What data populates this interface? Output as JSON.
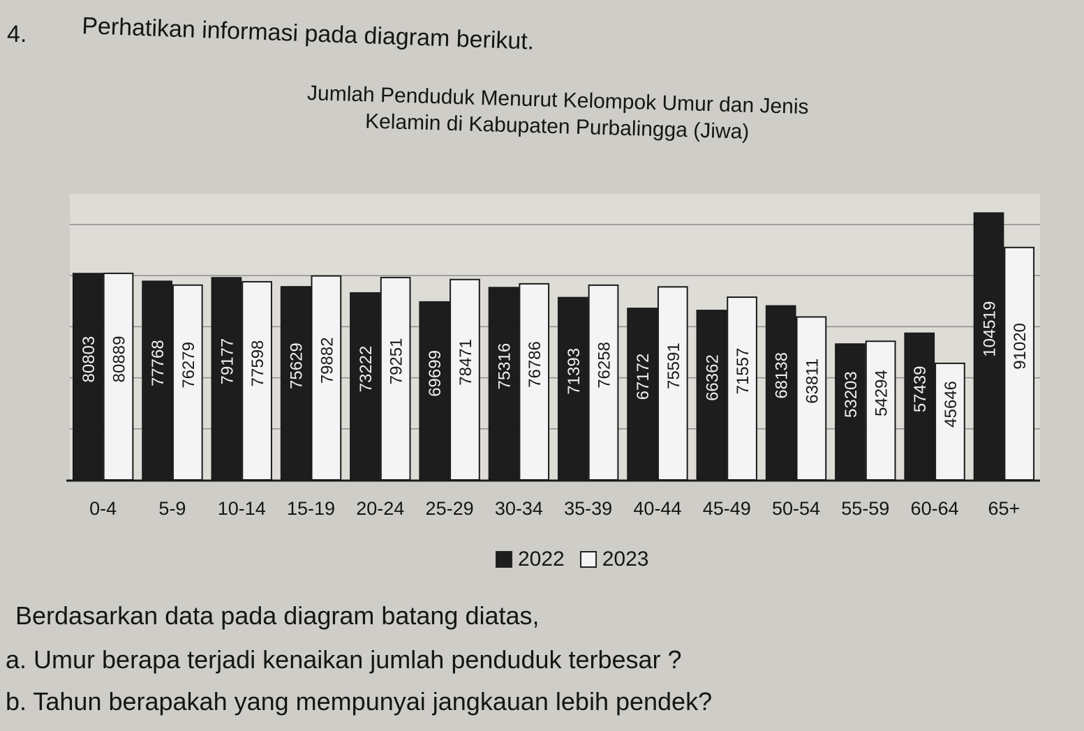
{
  "question_number": "4.",
  "intro": "Perhatikan informasi pada diagram berikut.",
  "chart_data": {
    "type": "bar",
    "title_lines": [
      "Jumlah Penduduk Menurut Kelompok Umur dan Jenis",
      "Kelamin di Kabupaten Purbalingga (Jiwa)"
    ],
    "categories": [
      "0-4",
      "5-9",
      "10-14",
      "15-19",
      "20-24",
      "25-29",
      "30-34",
      "35-39",
      "40-44",
      "45-49",
      "50-54",
      "55-59",
      "60-64",
      "65+"
    ],
    "series": [
      {
        "name": "2022",
        "values": [
          80803,
          77768,
          79177,
          75629,
          73222,
          69699,
          75316,
          71393,
          67172,
          66362,
          68138,
          53203,
          57439,
          104519
        ],
        "labels": [
          "80803",
          "77768",
          "79177",
          "75629",
          "73222",
          "69699",
          "75316",
          "71393",
          "67172",
          "66362",
          "68138",
          "53203",
          "57439",
          "104519"
        ],
        "color": "#1d1d1d"
      },
      {
        "name": "2023",
        "values": [
          80889,
          76279,
          77598,
          79882,
          79251,
          78471,
          76786,
          76258,
          75591,
          71557,
          63811,
          54294,
          45646,
          91020
        ],
        "labels": [
          "80889",
          "76279",
          "77598",
          "79882",
          "79251",
          "78471",
          "76786",
          "76258",
          "75591",
          "71557",
          "63811",
          "54294",
          "45646",
          "91020"
        ],
        "color": "#f4f4f4"
      }
    ],
    "legend": [
      "2022",
      "2023"
    ],
    "legend_position": "bottom-center",
    "grid": true
  },
  "questions": {
    "intro": "Berdasarkan data pada diagram batang diatas,",
    "a": "a. Umur berapa terjadi kenaikan jumlah penduduk terbesar ?",
    "b": "b. Tahun berapakah yang mempunyai jangkauan lebih pendek?"
  }
}
